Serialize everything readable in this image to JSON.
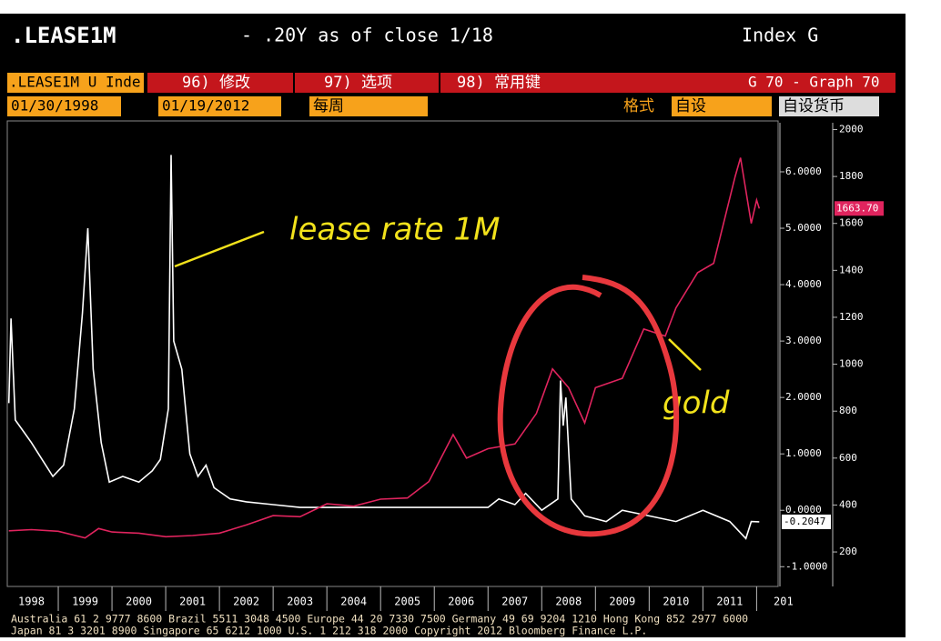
{
  "header": {
    "ticker": ".LEASE1M",
    "range": "- .20Y as of close 1/18",
    "index": "Index G"
  },
  "toolbar": {
    "security": ".LEASE1M U Inde",
    "edit": "96) 修改",
    "options": "97) 选项",
    "keys": "98) 常用键",
    "graph": "G 70 - Graph 70",
    "start": "01/30/1998",
    "end": "01/19/2012",
    "period": "每周",
    "format": "格式",
    "custom": "自设",
    "currency": "自设货币"
  },
  "footer": {
    "line1": "Australia 61 2 9777 8600 Brazil 5511 3048 4500 Europe 44 20 7330 7500 Germany 49 69 9204 1210 Hong Kong 852 2977 6000",
    "line2": "Japan 81 3 3201 8900        Singapore 65 6212 1000       U.S. 1 212 318 2000        Copyright 2012 Bloomberg Finance L.P."
  },
  "chart_data": {
    "type": "line",
    "xlim": [
      1998,
      2012.4
    ],
    "xticks": [
      1998,
      1999,
      2000,
      2001,
      2002,
      2003,
      2004,
      2005,
      2006,
      2007,
      2008,
      2009,
      2010,
      2011,
      {
        "value": 2012,
        "label": "201"
      }
    ],
    "ylim": [
      -1.35,
      6.87
    ],
    "yticks": [
      {
        "value": -1,
        "label": "-1.0000"
      },
      {
        "value": 0,
        "label": "0.0000"
      },
      {
        "value": 1,
        "label": "1.0000"
      },
      {
        "value": 2,
        "label": "2.0000"
      },
      {
        "value": 3,
        "label": "3.0000"
      },
      {
        "value": 4,
        "label": "4.0000"
      },
      {
        "value": 5,
        "label": "5.0000"
      },
      {
        "value": 6,
        "label": "6.0000"
      }
    ],
    "y2lim": [
      53,
      2029
    ],
    "y2ticks": [
      200,
      400,
      600,
      800,
      1000,
      1200,
      1400,
      1600,
      1800,
      2000
    ],
    "annotations": [
      "lease rate 1M",
      "gold"
    ],
    "series": [
      {
        "name": "lease rate 1M",
        "color": "#ffffff",
        "axis": "y",
        "x": [
          1998.08,
          1998.12,
          1998.2,
          1998.35,
          1998.5,
          1998.7,
          1998.9,
          1999.1,
          1999.3,
          1999.45,
          1999.55,
          1999.65,
          1999.8,
          1999.95,
          2000.2,
          2000.5,
          2000.75,
          2000.9,
          2001.05,
          2001.1,
          2001.15,
          2001.3,
          2001.45,
          2001.6,
          2001.75,
          2001.9,
          2002.2,
          2002.5,
          2003,
          2003.5,
          2004,
          2005,
          2006,
          2007,
          2007.2,
          2007.5,
          2007.7,
          2008,
          2008.3,
          2008.35,
          2008.4,
          2008.45,
          2008.55,
          2008.8,
          2009.2,
          2009.5,
          2010,
          2010.5,
          2011,
          2011.5,
          2011.8,
          2011.9,
          2012.05
        ],
        "values": [
          1.9,
          3.4,
          1.6,
          1.4,
          1.2,
          0.9,
          0.6,
          0.8,
          1.8,
          3.5,
          5.0,
          2.5,
          1.2,
          0.5,
          0.6,
          0.5,
          0.7,
          0.9,
          1.8,
          6.3,
          3.0,
          2.5,
          1.0,
          0.6,
          0.8,
          0.4,
          0.2,
          0.15,
          0.1,
          0.05,
          0.05,
          0.05,
          0.05,
          0.05,
          0.2,
          0.1,
          0.3,
          0.0,
          0.2,
          2.3,
          1.5,
          2.0,
          0.2,
          -0.1,
          -0.2,
          0.0,
          -0.1,
          -0.2,
          0.0,
          -0.2,
          -0.5,
          -0.2,
          -0.2047
        ],
        "value_labels": [
          null,
          null,
          null,
          null,
          null,
          null,
          null,
          null,
          null,
          null,
          null,
          null,
          null,
          null,
          null,
          null,
          null,
          null,
          null,
          null,
          null,
          null,
          null,
          null,
          null,
          null,
          null,
          null,
          null,
          null,
          null,
          null,
          null,
          null,
          null,
          null,
          null,
          null,
          null,
          null,
          null,
          null,
          null,
          null,
          null,
          null,
          null,
          null,
          null,
          null,
          null,
          null,
          "-0.2047"
        ]
      },
      {
        "name": "gold",
        "color": "#e0245e",
        "axis": "y2",
        "x": [
          1998.08,
          1998.5,
          1999,
          1999.5,
          1999.75,
          2000,
          2000.5,
          2001,
          2001.5,
          2002,
          2002.5,
          2003,
          2003.5,
          2004,
          2004.5,
          2005,
          2005.5,
          2005.9,
          2006.35,
          2006.6,
          2007,
          2007.5,
          2007.9,
          2008.2,
          2008.5,
          2008.8,
          2009,
          2009.5,
          2009.9,
          2010.3,
          2010.5,
          2010.9,
          2011.2,
          2011.6,
          2011.7,
          2011.9,
          2012,
          2012.05
        ],
        "values": [
          290,
          295,
          288,
          260,
          300,
          285,
          280,
          265,
          270,
          280,
          315,
          355,
          350,
          405,
          395,
          425,
          430,
          500,
          700,
          600,
          640,
          660,
          790,
          980,
          900,
          750,
          900,
          940,
          1150,
          1120,
          1240,
          1390,
          1430,
          1800,
          1880,
          1600,
          1700,
          1663.7
        ],
        "value_labels": [
          null,
          null,
          null,
          null,
          null,
          null,
          null,
          null,
          null,
          null,
          null,
          null,
          null,
          null,
          null,
          null,
          null,
          null,
          null,
          null,
          null,
          null,
          null,
          null,
          null,
          null,
          null,
          null,
          null,
          null,
          null,
          null,
          null,
          null,
          null,
          null,
          null,
          "1663.70"
        ]
      }
    ]
  }
}
